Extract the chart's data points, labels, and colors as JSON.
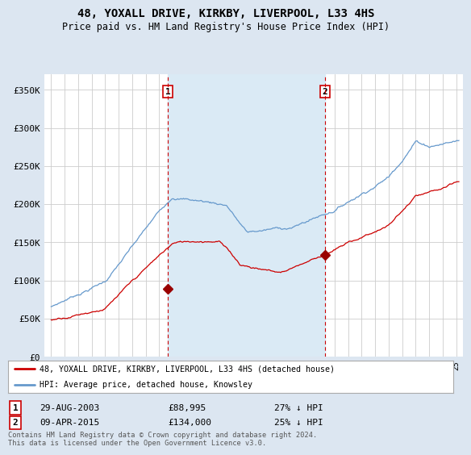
{
  "title": "48, YOXALL DRIVE, KIRKBY, LIVERPOOL, L33 4HS",
  "subtitle": "Price paid vs. HM Land Registry's House Price Index (HPI)",
  "ylabel_ticks": [
    "£0",
    "£50K",
    "£100K",
    "£150K",
    "£200K",
    "£250K",
    "£300K",
    "£350K"
  ],
  "ytick_values": [
    0,
    50000,
    100000,
    150000,
    200000,
    250000,
    300000,
    350000
  ],
  "ylim": [
    0,
    370000
  ],
  "xlim_start": 1994.5,
  "xlim_end": 2025.5,
  "sale1_year": 2003.65,
  "sale1_price": 88995,
  "sale1_label": "1",
  "sale1_date": "29-AUG-2003",
  "sale1_hpi_pct": "27% ↓ HPI",
  "sale2_year": 2015.27,
  "sale2_price": 134000,
  "sale2_label": "2",
  "sale2_date": "09-APR-2015",
  "sale2_hpi_pct": "25% ↓ HPI",
  "legend_line1": "48, YOXALL DRIVE, KIRKBY, LIVERPOOL, L33 4HS (detached house)",
  "legend_line2": "HPI: Average price, detached house, Knowsley",
  "footnote": "Contains HM Land Registry data © Crown copyright and database right 2024.\nThis data is licensed under the Open Government Licence v3.0.",
  "line_color_price": "#cc0000",
  "line_color_hpi": "#6699cc",
  "bg_color": "#dce6f1",
  "plot_bg": "#ffffff",
  "shade_color": "#daeaf5",
  "vline_color": "#cc0000",
  "marker_color": "#990000",
  "grid_color": "#cccccc"
}
